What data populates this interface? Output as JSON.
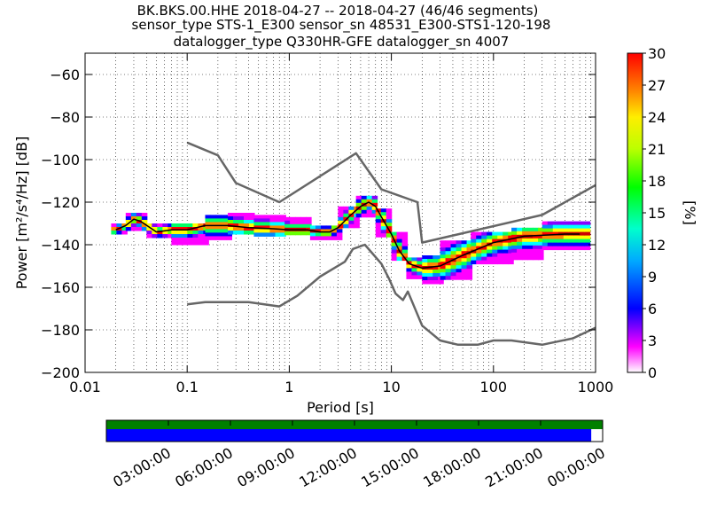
{
  "title_lines": [
    "BK.BKS.00.HHE   2018-04-27 -- 2018-04-27  (46/46 segments)",
    "sensor_type STS-1_E300 sensor_sn 48531_E300-STS1-120-198",
    "datalogger_type Q330HR-GFE datalogger_sn 4007"
  ],
  "colors": {
    "noise_model": "#666666",
    "mean_line": "#000000",
    "mode_line": "#00aa00",
    "coverage_top": "#008000",
    "coverage_bottom": "#0000ff",
    "colormap": [
      "#ffffff",
      "#ff00ff",
      "#8800ff",
      "#0000ff",
      "#0088ff",
      "#00ffff",
      "#00ff66",
      "#66ff00",
      "#ffff00",
      "#ff8800",
      "#ff0000",
      "#cc0000"
    ]
  },
  "chart_data": [
    {
      "type": "heatmap",
      "subtype": "probabilistic power spectral density",
      "xlabel": "Period [s]",
      "ylabel": "Power [m²/s⁴/Hz] [dB]",
      "x_scale": "log",
      "xlim": [
        0.01,
        1000
      ],
      "ylim": [
        -200,
        -50
      ],
      "x_ticks": [
        {
          "v": 0.01,
          "label": "0.01"
        },
        {
          "v": 0.1,
          "label": "0.1"
        },
        {
          "v": 1,
          "label": "1"
        },
        {
          "v": 10,
          "label": "10"
        },
        {
          "v": 100,
          "label": "100"
        },
        {
          "v": 1000,
          "label": "1000"
        }
      ],
      "y_ticks": [
        {
          "v": -60,
          "label": "−60"
        },
        {
          "v": -80,
          "label": "−80"
        },
        {
          "v": -100,
          "label": "−100"
        },
        {
          "v": -120,
          "label": "−120"
        },
        {
          "v": -140,
          "label": "−140"
        },
        {
          "v": -160,
          "label": "−160"
        },
        {
          "v": -180,
          "label": "−180"
        },
        {
          "v": -200,
          "label": "−200"
        }
      ],
      "grid": true,
      "colorbar": {
        "label": "[%]",
        "range": [
          0,
          30
        ],
        "ticks": [
          {
            "v": 0,
            "label": "0"
          },
          {
            "v": 3,
            "label": "3"
          },
          {
            "v": 6,
            "label": "6"
          },
          {
            "v": 9,
            "label": "9"
          },
          {
            "v": 12,
            "label": "12"
          },
          {
            "v": 15,
            "label": "15"
          },
          {
            "v": 18,
            "label": "18"
          },
          {
            "v": 21,
            "label": "21"
          },
          {
            "v": 24,
            "label": "24"
          },
          {
            "v": 27,
            "label": "27"
          },
          {
            "v": 30,
            "label": "30"
          }
        ]
      },
      "series": [
        {
          "x": [
            0.1,
            0.2,
            0.3,
            0.8,
            4.5,
            8,
            18,
            20,
            300,
            1000
          ],
          "y": [
            -92,
            -98,
            -111,
            -120,
            -97,
            -114,
            -120,
            -139,
            -126,
            -112
          ]
        },
        {
          "x": [
            0.1,
            0.15,
            0.4,
            0.8,
            1.2,
            2,
            3.5,
            4.2,
            5.5,
            8,
            9.5,
            11,
            13,
            14.5,
            20,
            30,
            45,
            70,
            100,
            150,
            300,
            600,
            1000
          ],
          "y": [
            -168,
            -167,
            -167,
            -169,
            -164,
            -155,
            -148,
            -142,
            -140,
            -149,
            -156,
            -163,
            -166,
            -162,
            -178,
            -185,
            -187,
            -187,
            -185,
            -185,
            -187,
            -184,
            -179
          ]
        },
        {
          "x": [
            0.02,
            0.025,
            0.03,
            0.035,
            0.05,
            0.07,
            0.1,
            0.15,
            0.25,
            0.4,
            0.7,
            1.0,
            1.5,
            2.0,
            2.5,
            3.0,
            4.0,
            5.0,
            6.0,
            7.0,
            8.0,
            10,
            12,
            15,
            20,
            30,
            50,
            100,
            200,
            500,
            700
          ],
          "y": [
            -133,
            -131,
            -128,
            -129,
            -134,
            -133,
            -133,
            -131,
            -131,
            -132,
            -132.5,
            -133,
            -133,
            -134,
            -134,
            -132,
            -126,
            -122,
            -120,
            -122,
            -127,
            -135,
            -143,
            -149,
            -151,
            -150,
            -145,
            -139,
            -136,
            -135,
            -135
          ]
        }
      ],
      "distribution": [
        {
          "x": [
            0.018,
            0.025
          ],
          "y": [
            -135,
            -130
          ]
        },
        {
          "x": [
            0.025,
            0.04
          ],
          "y": [
            -132,
            -125
          ]
        },
        {
          "x": [
            0.04,
            0.07
          ],
          "y": [
            -136,
            -130
          ]
        },
        {
          "x": [
            0.07,
            0.15
          ],
          "y": [
            -139,
            -130
          ]
        },
        {
          "x": [
            0.15,
            0.25
          ],
          "y": [
            -137,
            -126
          ]
        },
        {
          "x": [
            0.25,
            0.45
          ],
          "y": [
            -135,
            -125
          ]
        },
        {
          "x": [
            0.45,
            0.9
          ],
          "y": [
            -135,
            -126
          ]
        },
        {
          "x": [
            0.9,
            1.6
          ],
          "y": [
            -135,
            -127
          ]
        },
        {
          "x": [
            1.6,
            3
          ],
          "y": [
            -137,
            -131
          ]
        },
        {
          "x": [
            3,
            4.5
          ],
          "y": [
            -131,
            -122
          ]
        },
        {
          "x": [
            4.5,
            7
          ],
          "y": [
            -126,
            -117
          ]
        },
        {
          "x": [
            7,
            10
          ],
          "y": [
            -136,
            -123
          ]
        },
        {
          "x": [
            10,
            14
          ],
          "y": [
            -147,
            -134
          ]
        },
        {
          "x": [
            14,
            20
          ],
          "y": [
            -155,
            -146
          ]
        },
        {
          "x": [
            20,
            30
          ],
          "y": [
            -158,
            -145
          ]
        },
        {
          "x": [
            30,
            60
          ],
          "y": [
            -155,
            -138
          ]
        },
        {
          "x": [
            60,
            150
          ],
          "y": [
            -148,
            -134
          ]
        },
        {
          "x": [
            150,
            300
          ],
          "y": [
            -146,
            -132
          ]
        },
        {
          "x": [
            300,
            800
          ],
          "y": [
            -142,
            -129
          ]
        }
      ]
    },
    {
      "type": "bar",
      "subtype": "data coverage timeline",
      "x_ticks": [
        "03:00:00",
        "06:00:00",
        "09:00:00",
        "12:00:00",
        "15:00:00",
        "18:00:00",
        "21:00:00",
        "00:00:00"
      ],
      "series": [
        {
          "values": [
            1.0
          ]
        },
        {
          "values": [
            0.977
          ]
        }
      ]
    }
  ]
}
